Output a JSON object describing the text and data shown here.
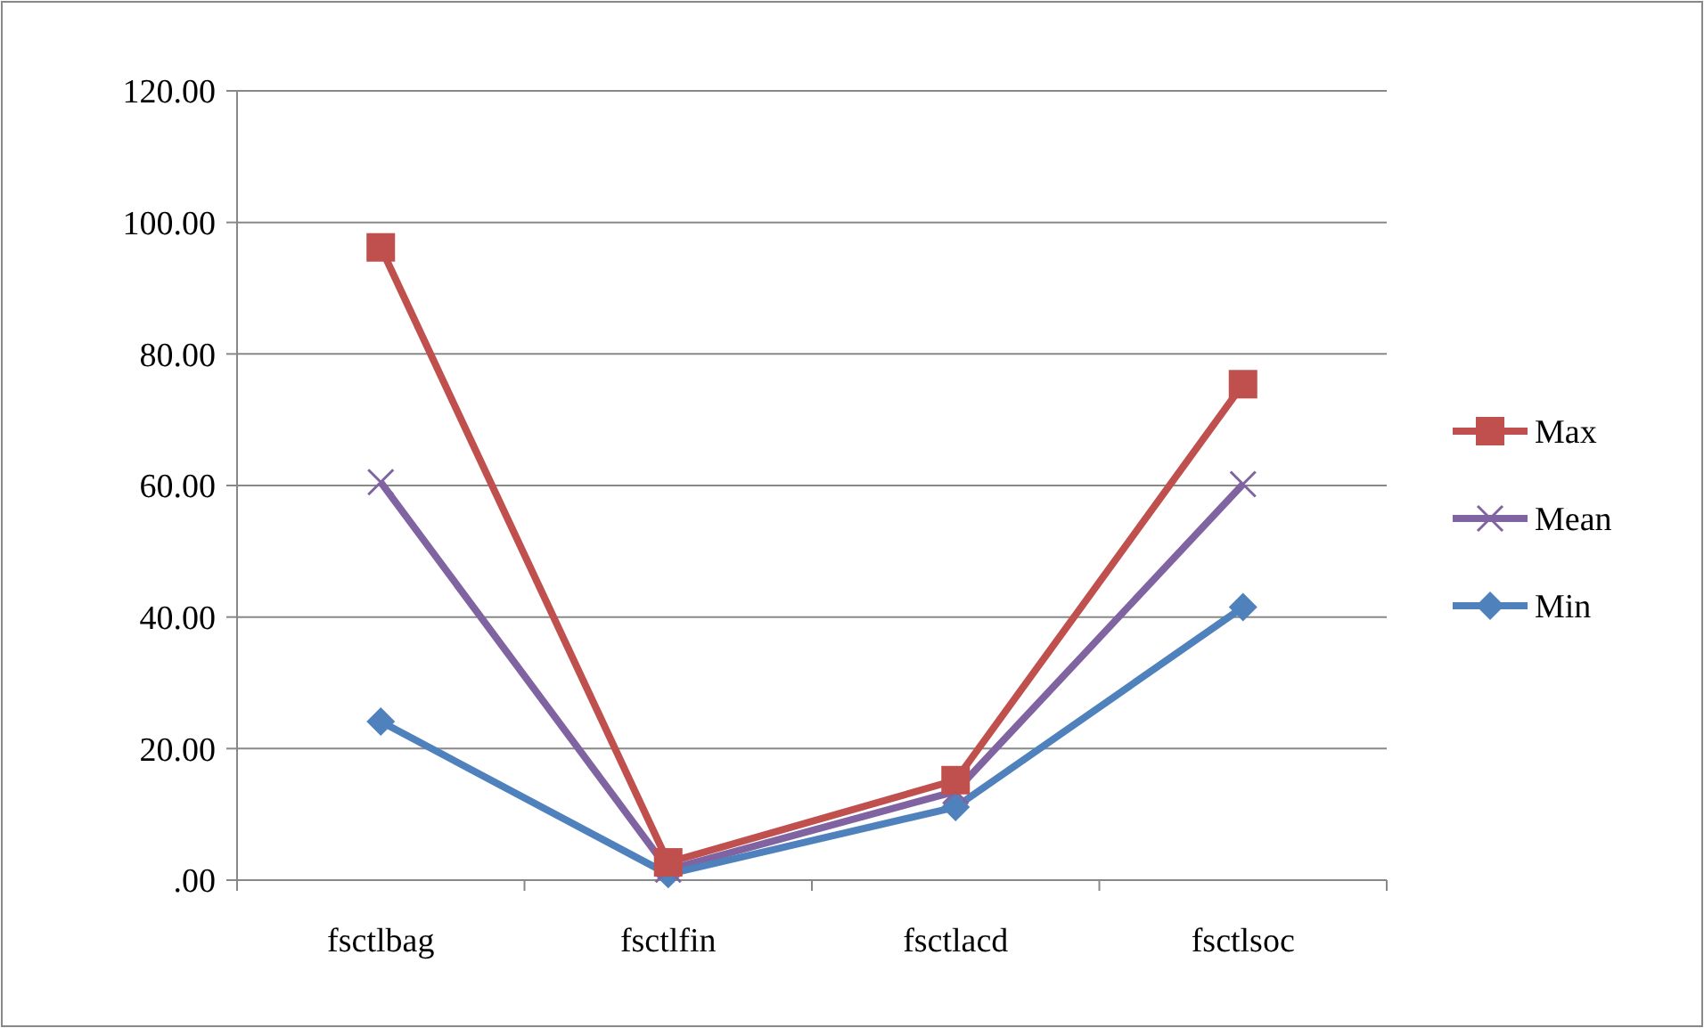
{
  "chart_data": {
    "type": "line",
    "categories": [
      "fsctlbag",
      "fsctlfin",
      "fsctlacd",
      "fsctlsoc"
    ],
    "series": [
      {
        "name": "Max",
        "color": "#c0504d",
        "marker": "square",
        "values": [
          96.2,
          2.7,
          15.2,
          75.4
        ]
      },
      {
        "name": "Mean",
        "color": "#8064a2",
        "marker": "cross",
        "values": [
          60.5,
          1.6,
          13.5,
          60.2
        ]
      },
      {
        "name": "Min",
        "color": "#4f81bd",
        "marker": "diamond",
        "values": [
          24.1,
          0.9,
          11.1,
          41.5
        ]
      }
    ],
    "ylim": [
      0,
      120
    ],
    "yticks": [
      {
        "value": 0,
        "label": ".00"
      },
      {
        "value": 20,
        "label": "20.00"
      },
      {
        "value": 40,
        "label": "40.00"
      },
      {
        "value": 60,
        "label": "60.00"
      },
      {
        "value": 80,
        "label": "80.00"
      },
      {
        "value": 100,
        "label": "100.00"
      },
      {
        "value": 120,
        "label": "120.00"
      }
    ],
    "grid": "y",
    "legend": "right",
    "line_style": "solid"
  }
}
